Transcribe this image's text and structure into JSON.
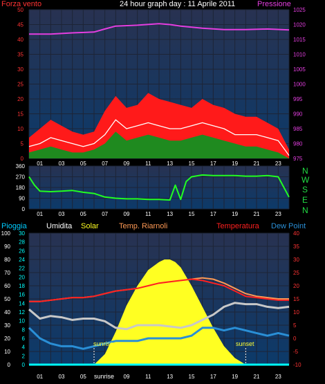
{
  "header": {
    "left_label": "Forza vento",
    "title": "24 hour graph day : 11 Aprile 2011",
    "right_label": "Pressione"
  },
  "x_ticks": [
    "01",
    "03",
    "05",
    "07",
    "09",
    "11",
    "13",
    "15",
    "17",
    "19",
    "21",
    "23"
  ],
  "direction_labels": [
    "N",
    "W",
    "S",
    "E",
    "N"
  ],
  "legend": {
    "pioggia": "Pioggia",
    "umidita": "Umidita",
    "solar": "Solar",
    "temp_riarnoli": "Temp. Riarnoli",
    "temperatura": "Temperatura",
    "dew_point": "Dew Point"
  },
  "annotations": {
    "sunrise": "sunrise",
    "sunset": "sunset",
    "sunrise_axis": "sunrise"
  },
  "colors": {
    "panel_bg_top": "#2a3352",
    "panel_bg_bottom": "#0e3a68",
    "grid": "#1d2436",
    "pressure": "#e43ee0",
    "gust": "#ff1a1a",
    "wind_avg": "#ffffff",
    "wind_min": "#1f8a1f",
    "direction": "#22ff22",
    "humidity": "#c8c8c8",
    "temperature": "#ff2020",
    "temp_riarnoli": "#ff9a55",
    "dew_point": "#2a8fd6",
    "solar": "#ffff22",
    "rain": "#00ffff",
    "left_axis_text": "#ff3333",
    "right_axis_text": "#e43ee0",
    "temp_axis_text": "#ff3333",
    "humidity_axis_text": "#ffffff",
    "rain_axis_text": "#00ffff"
  },
  "chart_data": [
    {
      "type": "line",
      "name": "wind_and_pressure",
      "title": "24 hour graph day : 11 Aprile 2011",
      "x_range": [
        0,
        24
      ],
      "y_left": {
        "label": "Forza vento",
        "range": [
          0,
          50
        ],
        "ticks": [
          "0",
          "5",
          "10",
          "15",
          "20",
          "25",
          "30",
          "35",
          "40",
          "45",
          "50"
        ]
      },
      "y_right": {
        "label": "Pressione",
        "range": [
          975,
          1025
        ],
        "ticks": [
          "975",
          "980",
          "985",
          "990",
          "995",
          "1000",
          "1005",
          "1010",
          "1015",
          "1020",
          "1025"
        ]
      },
      "series": [
        {
          "name": "Pressione",
          "axis": "right",
          "x": [
            0,
            2,
            4,
            6,
            7,
            8,
            10,
            12,
            13,
            14,
            16,
            18,
            20,
            22,
            24
          ],
          "y": [
            1016.8,
            1016.8,
            1017.2,
            1017.5,
            1018.5,
            1019.5,
            1019.8,
            1020.3,
            1020.0,
            1019.5,
            1018.8,
            1018.3,
            1018.3,
            1018.5,
            1018.2
          ]
        },
        {
          "name": "gust",
          "x": [
            0,
            1,
            2,
            3,
            4,
            5,
            6,
            7,
            8,
            9,
            10,
            11,
            12,
            13,
            14,
            15,
            16,
            17,
            18,
            19,
            20,
            21,
            22,
            23,
            24
          ],
          "y": [
            7,
            10,
            13,
            11,
            9,
            8,
            9,
            16,
            21,
            17,
            18,
            22,
            20,
            19,
            18,
            17,
            20,
            18,
            17,
            15,
            14,
            14,
            12,
            10,
            3
          ]
        },
        {
          "name": "average",
          "x": [
            0,
            1,
            2,
            3,
            4,
            5,
            6,
            7,
            8,
            9,
            10,
            11,
            12,
            13,
            14,
            15,
            16,
            17,
            18,
            19,
            20,
            21,
            22,
            23,
            24
          ],
          "y": [
            4,
            5,
            7,
            6,
            5,
            4,
            5,
            8,
            13,
            10,
            11,
            12,
            11,
            10,
            10,
            11,
            12,
            11,
            10,
            8,
            8,
            8,
            7,
            6,
            1
          ]
        },
        {
          "name": "minimum",
          "x": [
            0,
            1,
            2,
            3,
            4,
            5,
            6,
            7,
            8,
            9,
            10,
            11,
            12,
            13,
            14,
            15,
            16,
            17,
            18,
            19,
            20,
            21,
            22,
            23,
            24
          ],
          "y": [
            2,
            3,
            4,
            3,
            2,
            2,
            3,
            5,
            9,
            6,
            7,
            8,
            7,
            6,
            6,
            7,
            8,
            7,
            6,
            5,
            4,
            4,
            3,
            2,
            0
          ]
        }
      ]
    },
    {
      "type": "line",
      "name": "wind_direction",
      "x_range": [
        0,
        24
      ],
      "y_left": {
        "range": [
          0,
          360
        ],
        "ticks": [
          "0",
          "90",
          "180",
          "270",
          "360"
        ]
      },
      "series": [
        {
          "name": "direction",
          "x": [
            0,
            0.5,
            1,
            2,
            3,
            4,
            5,
            6,
            7,
            8,
            9,
            10,
            11,
            12,
            13,
            13.5,
            14,
            14.5,
            15,
            16,
            17,
            18,
            19,
            20,
            21,
            22,
            23,
            24
          ],
          "y": [
            270,
            200,
            150,
            145,
            150,
            155,
            140,
            130,
            100,
            90,
            85,
            85,
            80,
            80,
            75,
            200,
            80,
            230,
            270,
            285,
            280,
            280,
            280,
            275,
            275,
            280,
            270,
            100
          ]
        }
      ]
    },
    {
      "type": "line",
      "name": "temperature_humidity_solar",
      "x_range": [
        0,
        24
      ],
      "y_left_humidity": {
        "label": "Umidita",
        "range": [
          0,
          100
        ],
        "ticks": [
          "0",
          "10",
          "20",
          "30",
          "40",
          "50",
          "60",
          "70",
          "80",
          "90",
          "100"
        ]
      },
      "y_left_rain": {
        "label": "Pioggia",
        "range": [
          0,
          30
        ],
        "ticks": [
          "0",
          "2",
          "4",
          "6",
          "8",
          "10",
          "12",
          "14",
          "16",
          "18",
          "20",
          "22",
          "24",
          "26",
          "28",
          "30"
        ]
      },
      "y_right": {
        "label": "Temperatura",
        "range": [
          -10,
          40
        ],
        "ticks": [
          "-10",
          "-5",
          "0",
          "5",
          "10",
          "15",
          "20",
          "25",
          "30",
          "35",
          "40"
        ]
      },
      "series": [
        {
          "name": "Temperatura",
          "x": [
            0,
            1,
            2,
            3,
            4,
            5,
            6,
            7,
            8,
            9,
            10,
            11,
            12,
            13,
            14,
            15,
            16,
            17,
            18,
            19,
            20,
            21,
            22,
            23,
            24
          ],
          "y": [
            14,
            14,
            14.5,
            15,
            15.5,
            15.5,
            16,
            17,
            18,
            18.5,
            19,
            20,
            21,
            21.5,
            22,
            22.5,
            22,
            21,
            20,
            18,
            16,
            15.5,
            15,
            14.5,
            14.5
          ]
        },
        {
          "name": "Temp. Riarnoli",
          "x": [
            0,
            1,
            2,
            3,
            4,
            5,
            6,
            7,
            8,
            9,
            10,
            11,
            12,
            13,
            14,
            15,
            16,
            17,
            18,
            19,
            20,
            21,
            22,
            23,
            24
          ],
          "y": [
            14,
            14,
            14.5,
            15,
            15.5,
            15.5,
            16,
            17,
            18,
            18.5,
            19,
            20,
            21,
            21.5,
            22,
            22.5,
            23,
            22.5,
            21,
            19,
            17,
            16,
            15.5,
            15,
            15
          ]
        },
        {
          "name": "Umidita",
          "x": [
            0,
            1,
            2,
            3,
            4,
            5,
            6,
            7,
            8,
            9,
            10,
            11,
            12,
            13,
            14,
            15,
            16,
            17,
            18,
            19,
            20,
            21,
            22,
            23,
            24
          ],
          "y": [
            42,
            35,
            37,
            36,
            34,
            35,
            35,
            33,
            28,
            27,
            30,
            30,
            30,
            29,
            28,
            30,
            34,
            38,
            44,
            47,
            46,
            46,
            44,
            43,
            44
          ]
        },
        {
          "name": "Dew Point",
          "x": [
            0,
            1,
            2,
            3,
            4,
            5,
            6,
            7,
            8,
            9,
            10,
            11,
            12,
            13,
            14,
            15,
            16,
            17,
            18,
            19,
            20,
            21,
            22,
            23,
            24
          ],
          "y": [
            4,
            0,
            -2,
            -3,
            -3,
            -4,
            -3,
            -2,
            -1,
            -1,
            -1,
            0,
            0,
            0,
            0,
            1,
            4,
            4,
            3,
            4,
            3,
            2,
            1,
            2,
            1
          ]
        },
        {
          "name": "Solar",
          "x": [
            6,
            7,
            8,
            9,
            10,
            11,
            12,
            12.5,
            13,
            13.5,
            14,
            15,
            16,
            17,
            18,
            19,
            20
          ],
          "y": [
            0,
            8,
            25,
            45,
            60,
            72,
            78,
            80,
            80,
            78,
            74,
            60,
            44,
            28,
            14,
            5,
            0
          ]
        },
        {
          "name": "Pioggia",
          "x": [
            0,
            24
          ],
          "y": [
            0,
            0
          ]
        }
      ],
      "sunrise_hour": 6.0,
      "sunset_hour": 20.0
    }
  ]
}
